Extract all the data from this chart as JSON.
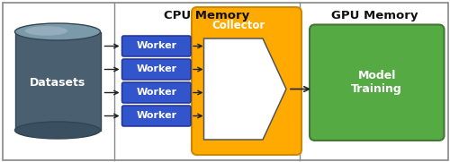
{
  "fig_width": 5.0,
  "fig_height": 1.81,
  "dpi": 100,
  "bg_color": "#ffffff",
  "border_color": "#888888",
  "cpu_memory_label": "CPU Memory",
  "gpu_memory_label": "GPU Memory",
  "datasets_label": "Datasets",
  "collector_label": "Collector",
  "model_training_label": "Model\nTraining",
  "worker_label": "Worker",
  "num_workers": 4,
  "worker_color": "#3355cc",
  "worker_border_color": "#223399",
  "worker_text_color": "#ffffff",
  "collector_color": "#ffaa00",
  "collector_border_color": "#cc8800",
  "model_training_color": "#55aa44",
  "model_training_border_color": "#447733",
  "model_training_text_color": "#ffffff",
  "cyl_body_color": "#4a6070",
  "cyl_top_color": "#7a9aaa",
  "cyl_bot_color": "#3a5060",
  "cyl_edge_color": "#334455",
  "section_line_color": "#888888",
  "arrow_color": "#222222",
  "header_fontsize": 9.5,
  "label_fontsize": 8.5,
  "worker_fontsize": 8,
  "collector_fontsize": 8.5,
  "mt_fontsize": 9
}
